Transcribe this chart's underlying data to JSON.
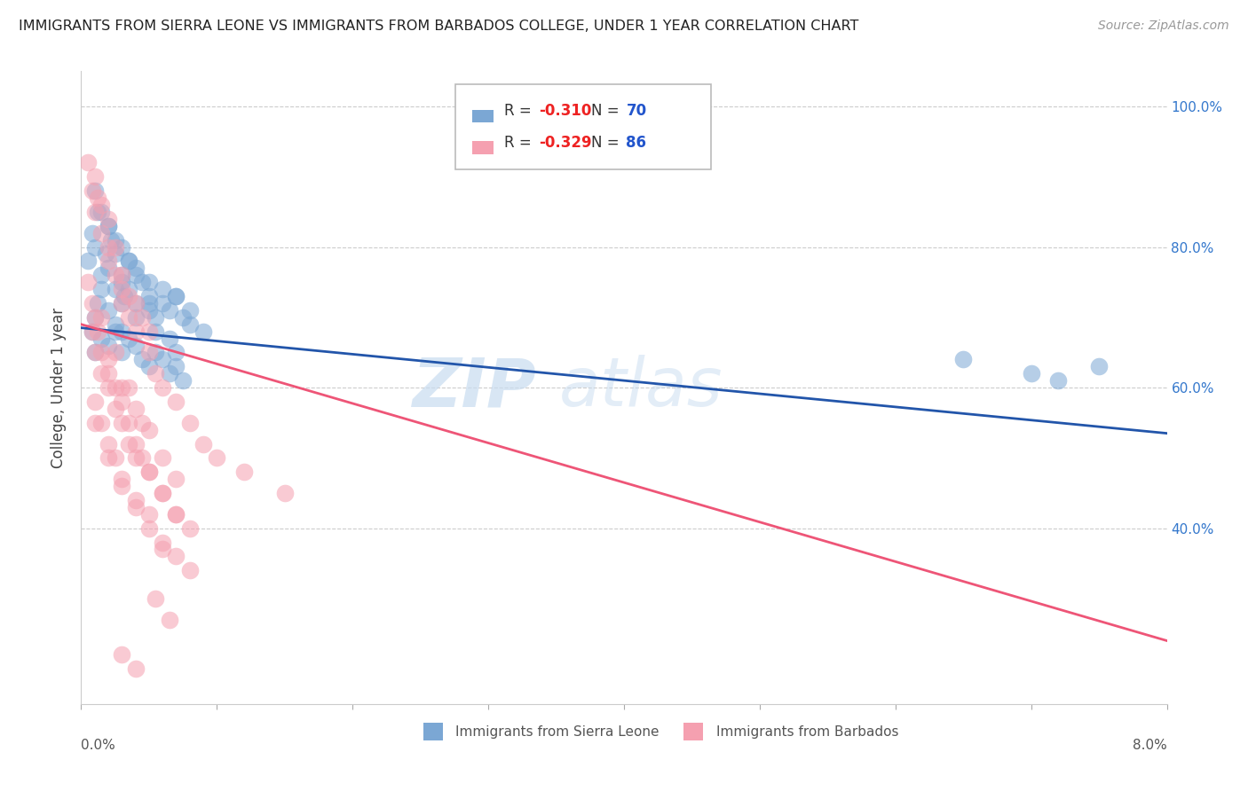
{
  "title": "IMMIGRANTS FROM SIERRA LEONE VS IMMIGRANTS FROM BARBADOS COLLEGE, UNDER 1 YEAR CORRELATION CHART",
  "source": "Source: ZipAtlas.com",
  "ylabel": "College, Under 1 year",
  "xmin": 0.0,
  "xmax": 0.08,
  "ymin": 0.15,
  "ymax": 1.05,
  "right_yticks": [
    0.4,
    0.6,
    0.8,
    1.0
  ],
  "right_yticklabels": [
    "40.0%",
    "60.0%",
    "80.0%",
    "100.0%"
  ],
  "legend_R1_val": "-0.310",
  "legend_N1_val": "70",
  "legend_R2_val": "-0.329",
  "legend_N2_val": "86",
  "series1_name": "Immigrants from Sierra Leone",
  "series2_name": "Immigrants from Barbados",
  "color1": "#7BA7D4",
  "color2": "#F5A0B0",
  "trendline1_color": "#2255AA",
  "trendline2_color": "#EE5577",
  "watermark_color": "#D0E4F0",
  "sierra_leone_x": [
    0.0005,
    0.0008,
    0.001,
    0.0012,
    0.0015,
    0.0018,
    0.002,
    0.002,
    0.0022,
    0.0025,
    0.0025,
    0.003,
    0.003,
    0.003,
    0.0032,
    0.0035,
    0.0035,
    0.004,
    0.004,
    0.0045,
    0.005,
    0.005,
    0.0055,
    0.006,
    0.0065,
    0.007,
    0.0075,
    0.008,
    0.008,
    0.009,
    0.001,
    0.0015,
    0.002,
    0.0025,
    0.003,
    0.0035,
    0.004,
    0.005,
    0.006,
    0.007,
    0.0008,
    0.001,
    0.0012,
    0.0015,
    0.002,
    0.0025,
    0.003,
    0.004,
    0.005,
    0.0055,
    0.0065,
    0.007,
    0.001,
    0.0015,
    0.002,
    0.0025,
    0.003,
    0.0035,
    0.004,
    0.0045,
    0.005,
    0.0055,
    0.006,
    0.0065,
    0.007,
    0.0075,
    0.065,
    0.07,
    0.072,
    0.075
  ],
  "sierra_leone_y": [
    0.78,
    0.82,
    0.8,
    0.85,
    0.76,
    0.79,
    0.77,
    0.83,
    0.81,
    0.74,
    0.79,
    0.72,
    0.76,
    0.75,
    0.73,
    0.78,
    0.74,
    0.72,
    0.76,
    0.75,
    0.71,
    0.73,
    0.7,
    0.72,
    0.71,
    0.73,
    0.7,
    0.71,
    0.69,
    0.68,
    0.88,
    0.85,
    0.83,
    0.81,
    0.8,
    0.78,
    0.77,
    0.75,
    0.74,
    0.73,
    0.68,
    0.7,
    0.72,
    0.74,
    0.71,
    0.69,
    0.68,
    0.7,
    0.72,
    0.68,
    0.67,
    0.65,
    0.65,
    0.67,
    0.66,
    0.68,
    0.65,
    0.67,
    0.66,
    0.64,
    0.63,
    0.65,
    0.64,
    0.62,
    0.63,
    0.61,
    0.64,
    0.62,
    0.61,
    0.63
  ],
  "barbados_x": [
    0.0005,
    0.0008,
    0.001,
    0.001,
    0.0012,
    0.0015,
    0.0015,
    0.002,
    0.002,
    0.002,
    0.0025,
    0.0025,
    0.003,
    0.003,
    0.003,
    0.0035,
    0.0035,
    0.004,
    0.004,
    0.0045,
    0.005,
    0.005,
    0.0055,
    0.006,
    0.007,
    0.008,
    0.009,
    0.01,
    0.012,
    0.015,
    0.0005,
    0.0008,
    0.001,
    0.0012,
    0.0015,
    0.002,
    0.0025,
    0.003,
    0.0035,
    0.004,
    0.0045,
    0.005,
    0.006,
    0.007,
    0.0008,
    0.001,
    0.0015,
    0.002,
    0.0025,
    0.003,
    0.0035,
    0.004,
    0.005,
    0.006,
    0.007,
    0.008,
    0.001,
    0.0015,
    0.002,
    0.0025,
    0.003,
    0.004,
    0.005,
    0.006,
    0.007,
    0.008,
    0.002,
    0.003,
    0.004,
    0.005,
    0.006,
    0.007,
    0.0055,
    0.0065,
    0.001,
    0.002,
    0.003,
    0.004,
    0.005,
    0.006,
    0.0015,
    0.0025,
    0.0035,
    0.0045,
    0.003,
    0.004
  ],
  "barbados_y": [
    0.92,
    0.88,
    0.9,
    0.85,
    0.87,
    0.82,
    0.86,
    0.8,
    0.84,
    0.78,
    0.76,
    0.8,
    0.72,
    0.76,
    0.74,
    0.7,
    0.73,
    0.68,
    0.72,
    0.7,
    0.68,
    0.65,
    0.62,
    0.6,
    0.58,
    0.55,
    0.52,
    0.5,
    0.48,
    0.45,
    0.75,
    0.72,
    0.7,
    0.68,
    0.65,
    0.62,
    0.6,
    0.58,
    0.55,
    0.52,
    0.5,
    0.48,
    0.45,
    0.42,
    0.68,
    0.65,
    0.62,
    0.6,
    0.57,
    0.55,
    0.52,
    0.5,
    0.48,
    0.45,
    0.42,
    0.4,
    0.58,
    0.55,
    0.52,
    0.5,
    0.47,
    0.44,
    0.42,
    0.38,
    0.36,
    0.34,
    0.64,
    0.6,
    0.57,
    0.54,
    0.5,
    0.47,
    0.3,
    0.27,
    0.55,
    0.5,
    0.46,
    0.43,
    0.4,
    0.37,
    0.7,
    0.65,
    0.6,
    0.55,
    0.22,
    0.2
  ]
}
